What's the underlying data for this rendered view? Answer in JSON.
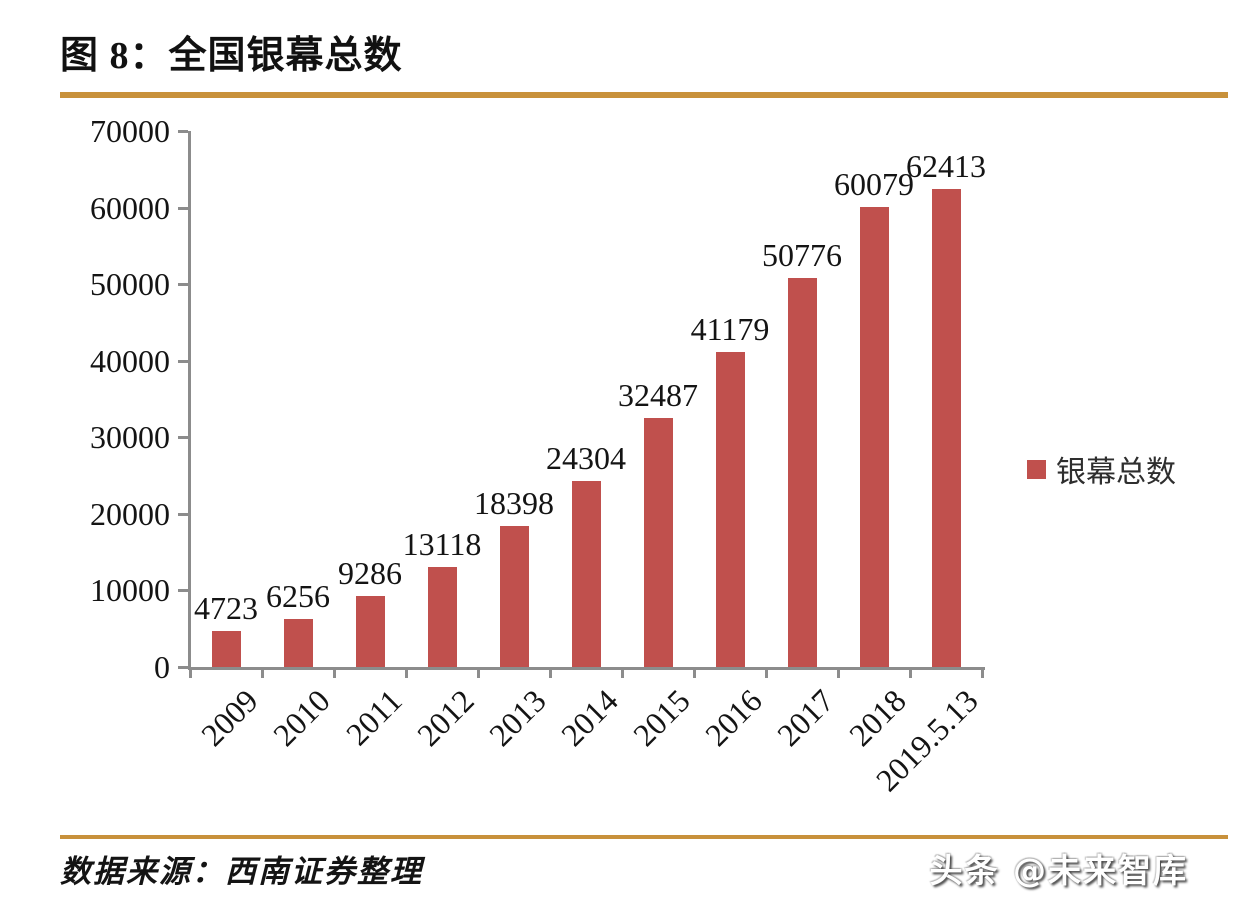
{
  "figure": {
    "title": "图 8：全国银幕总数",
    "source": "数据来源：西南证券整理",
    "watermark": "头条 @未来智库",
    "accent_color": "#C8913B"
  },
  "chart_data": {
    "type": "bar",
    "title": "全国银幕总数",
    "categories": [
      "2009",
      "2010",
      "2011",
      "2012",
      "2013",
      "2014",
      "2015",
      "2016",
      "2017",
      "2018",
      "2019.5.13"
    ],
    "values": [
      4723,
      6256,
      9286,
      13118,
      18398,
      24304,
      32487,
      41179,
      50776,
      60079,
      62413
    ],
    "series_name": "银幕总数",
    "legend": [
      "银幕总数"
    ],
    "legend_position": "right",
    "xlabel": "",
    "ylabel": "",
    "ylim": [
      0,
      70000
    ],
    "yticks": [
      0,
      10000,
      20000,
      30000,
      40000,
      50000,
      60000,
      70000
    ],
    "grid": false,
    "data_labels": true,
    "bar_color": "#C0504D",
    "axis_color": "#8C8C8C",
    "text_color": "#141414"
  }
}
